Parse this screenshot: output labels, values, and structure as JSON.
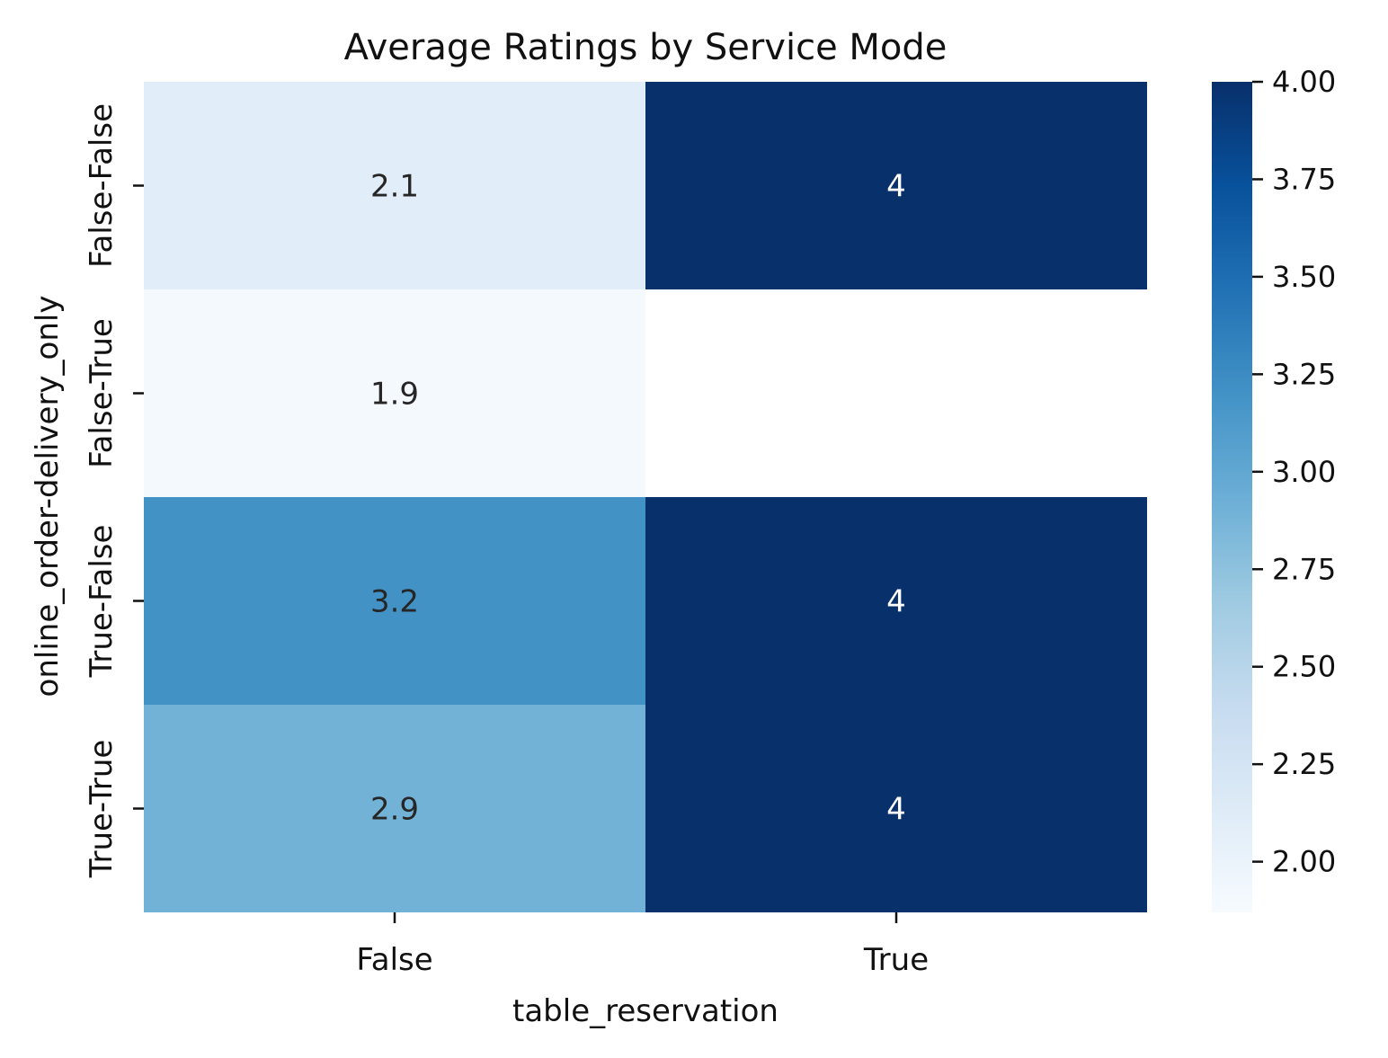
{
  "chart_data": {
    "type": "heatmap",
    "title": "Average Ratings by Service Mode",
    "xlabel": "table_reservation",
    "ylabel": "online_order-delivery_only",
    "x_categories": [
      "False",
      "True"
    ],
    "y_categories": [
      "False-False",
      "False-True",
      "True-False",
      "True-True"
    ],
    "values": [
      [
        2.1,
        4
      ],
      [
        1.9,
        null
      ],
      [
        3.2,
        4
      ],
      [
        2.9,
        4
      ]
    ],
    "value_labels": [
      [
        "2.1",
        "4"
      ],
      [
        "1.9",
        ""
      ],
      [
        "3.2",
        "4"
      ],
      [
        "2.9",
        "4"
      ]
    ],
    "colormap": "Blues",
    "colorbar": {
      "vmin": 1.87,
      "vmax": 4.0,
      "ticks": [
        2.0,
        2.25,
        2.5,
        2.75,
        3.0,
        3.25,
        3.5,
        3.75,
        4.0
      ],
      "tick_labels": [
        "2.00",
        "2.25",
        "2.50",
        "2.75",
        "3.00",
        "3.25",
        "3.50",
        "3.75",
        "4.00"
      ]
    },
    "colormap_stops": [
      "#f7fbff",
      "#deebf7",
      "#c6dbef",
      "#9ecae1",
      "#6baed6",
      "#4292c6",
      "#2171b5",
      "#08519c",
      "#08306b"
    ],
    "annotation_colors": {
      "dark": "#262626",
      "light": "#ffffff"
    }
  }
}
